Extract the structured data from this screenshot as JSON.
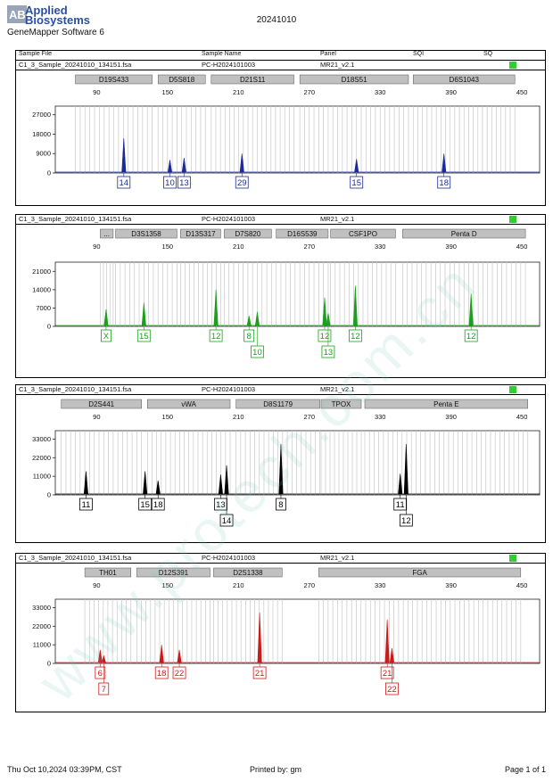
{
  "header": {
    "logo_line1": "Applied",
    "logo_line2": "Biosystems",
    "software": "GeneMapper Software 6",
    "title": "20241010",
    "columns": [
      "Sample File",
      "Sample Name",
      "Panel",
      "SQI",
      "SQ"
    ]
  },
  "sample": {
    "file": "C1_3_Sample_20241010_134151.fsa",
    "name": "PC-H2024101003",
    "panel": "MR21_v2.1"
  },
  "colors": {
    "blue": "#1a2a9c",
    "green": "#1aa01a",
    "black": "#000000",
    "red": "#cc1a1a",
    "sq": "#33cc33",
    "grid": "#c8c8c8",
    "marker": "#c0c0c0"
  },
  "chart_data": [
    {
      "type": "line",
      "dye": "blue",
      "x_ticks": [
        90,
        150,
        210,
        270,
        330,
        390,
        450
      ],
      "y_ticks": [
        0,
        9000,
        18000,
        27000
      ],
      "ylim": [
        0,
        31000
      ],
      "xlim": [
        55,
        465
      ],
      "markers": [
        {
          "name": "D19S433",
          "start": 72,
          "end": 137
        },
        {
          "name": "D5S818",
          "start": 142,
          "end": 182
        },
        {
          "name": "D21S11",
          "start": 187,
          "end": 257
        },
        {
          "name": "D18S51",
          "start": 262,
          "end": 354
        },
        {
          "name": "D6S1043",
          "start": 358,
          "end": 444
        }
      ],
      "peaks": [
        {
          "x": 113,
          "y": 16000
        },
        {
          "x": 152,
          "y": 6000
        },
        {
          "x": 164,
          "y": 7000
        },
        {
          "x": 213,
          "y": 9000
        },
        {
          "x": 310,
          "y": 6500
        },
        {
          "x": 384,
          "y": 9000
        }
      ],
      "alleles": [
        {
          "x": 113,
          "row": 0,
          "label": "14"
        },
        {
          "x": 152,
          "row": 0,
          "label": "10"
        },
        {
          "x": 164,
          "row": 0,
          "label": "13"
        },
        {
          "x": 213,
          "row": 0,
          "label": "29"
        },
        {
          "x": 310,
          "row": 0,
          "label": "15"
        },
        {
          "x": 384,
          "row": 0,
          "label": "18"
        }
      ]
    },
    {
      "type": "line",
      "dye": "green",
      "x_ticks": [
        90,
        150,
        210,
        270,
        330,
        390,
        450
      ],
      "y_ticks": [
        0,
        7000,
        14000,
        21000
      ],
      "ylim": [
        0,
        24500
      ],
      "xlim": [
        55,
        465
      ],
      "markers": [
        {
          "name": "...",
          "start": 93,
          "end": 104
        },
        {
          "name": "D3S1358",
          "start": 106,
          "end": 158
        },
        {
          "name": "D13S317",
          "start": 161,
          "end": 195
        },
        {
          "name": "D7S820",
          "start": 198,
          "end": 238
        },
        {
          "name": "D16S539",
          "start": 242,
          "end": 286
        },
        {
          "name": "CSF1PO",
          "start": 288,
          "end": 343
        },
        {
          "name": "Penta D",
          "start": 349,
          "end": 453
        }
      ],
      "peaks": [
        {
          "x": 98,
          "y": 6500
        },
        {
          "x": 130,
          "y": 9000
        },
        {
          "x": 191,
          "y": 14000
        },
        {
          "x": 219,
          "y": 4000
        },
        {
          "x": 226,
          "y": 5500
        },
        {
          "x": 283,
          "y": 11000
        },
        {
          "x": 286,
          "y": 5000
        },
        {
          "x": 309,
          "y": 15500
        },
        {
          "x": 407,
          "y": 12500
        }
      ],
      "alleles": [
        {
          "x": 98,
          "row": 0,
          "label": "X"
        },
        {
          "x": 130,
          "row": 0,
          "label": "15"
        },
        {
          "x": 191,
          "row": 0,
          "label": "12"
        },
        {
          "x": 219,
          "row": 0,
          "label": "8"
        },
        {
          "x": 226,
          "row": 1,
          "label": "10"
        },
        {
          "x": 283,
          "row": 0,
          "label": "12"
        },
        {
          "x": 286,
          "row": 1,
          "label": "13"
        },
        {
          "x": 309,
          "row": 0,
          "label": "12"
        },
        {
          "x": 407,
          "row": 0,
          "label": "12"
        }
      ]
    },
    {
      "type": "line",
      "dye": "black",
      "x_ticks": [
        90,
        150,
        210,
        270,
        330,
        390,
        450
      ],
      "y_ticks": [
        0,
        11000,
        22000,
        33000
      ],
      "ylim": [
        0,
        38000
      ],
      "xlim": [
        55,
        465
      ],
      "markers": [
        {
          "name": "D2S441",
          "start": 60,
          "end": 128
        },
        {
          "name": "vWA",
          "start": 133,
          "end": 203
        },
        {
          "name": "D8S1179",
          "start": 208,
          "end": 279
        },
        {
          "name": "TPOX",
          "start": 280,
          "end": 314
        },
        {
          "name": "Penta E",
          "start": 317,
          "end": 455
        }
      ],
      "peaks": [
        {
          "x": 81,
          "y": 14000
        },
        {
          "x": 131,
          "y": 14000
        },
        {
          "x": 142,
          "y": 8500
        },
        {
          "x": 195,
          "y": 12000
        },
        {
          "x": 200,
          "y": 17500
        },
        {
          "x": 246,
          "y": 30000
        },
        {
          "x": 347,
          "y": 12500
        },
        {
          "x": 352,
          "y": 30000
        }
      ],
      "alleles": [
        {
          "x": 81,
          "row": 0,
          "label": "11"
        },
        {
          "x": 131,
          "row": 0,
          "label": "15"
        },
        {
          "x": 142,
          "row": 0,
          "label": "18"
        },
        {
          "x": 195,
          "row": 0,
          "label": "13"
        },
        {
          "x": 200,
          "row": 1,
          "label": "14"
        },
        {
          "x": 246,
          "row": 0,
          "label": "8"
        },
        {
          "x": 347,
          "row": 0,
          "label": "11"
        },
        {
          "x": 352,
          "row": 1,
          "label": "12"
        }
      ]
    },
    {
      "type": "line",
      "dye": "red",
      "x_ticks": [
        90,
        150,
        210,
        270,
        330,
        390,
        450
      ],
      "y_ticks": [
        0,
        11000,
        22000,
        33000
      ],
      "ylim": [
        0,
        38000
      ],
      "xlim": [
        55,
        465
      ],
      "markers": [
        {
          "name": "TH01",
          "start": 80,
          "end": 119
        },
        {
          "name": "D12S391",
          "start": 124,
          "end": 186
        },
        {
          "name": "D2S1338",
          "start": 189,
          "end": 247
        },
        {
          "name": "FGA",
          "start": 278,
          "end": 449
        }
      ],
      "peaks": [
        {
          "x": 93,
          "y": 8000
        },
        {
          "x": 96,
          "y": 4500
        },
        {
          "x": 145,
          "y": 11000
        },
        {
          "x": 160,
          "y": 8000
        },
        {
          "x": 228,
          "y": 30000
        },
        {
          "x": 336,
          "y": 26000
        },
        {
          "x": 340,
          "y": 9000
        }
      ],
      "alleles": [
        {
          "x": 93,
          "row": 0,
          "label": "6"
        },
        {
          "x": 96,
          "row": 1,
          "label": "7"
        },
        {
          "x": 145,
          "row": 0,
          "label": "18"
        },
        {
          "x": 160,
          "row": 0,
          "label": "22"
        },
        {
          "x": 228,
          "row": 0,
          "label": "21"
        },
        {
          "x": 336,
          "row": 0,
          "label": "21"
        },
        {
          "x": 340,
          "row": 1,
          "label": "22"
        }
      ]
    }
  ],
  "footer": {
    "date": "Thu Oct 10,2024 03:39PM, CST",
    "printed_by": "Printed by: gm",
    "page": "Page 1 of 1"
  },
  "watermark": "www.protech.com.cn"
}
